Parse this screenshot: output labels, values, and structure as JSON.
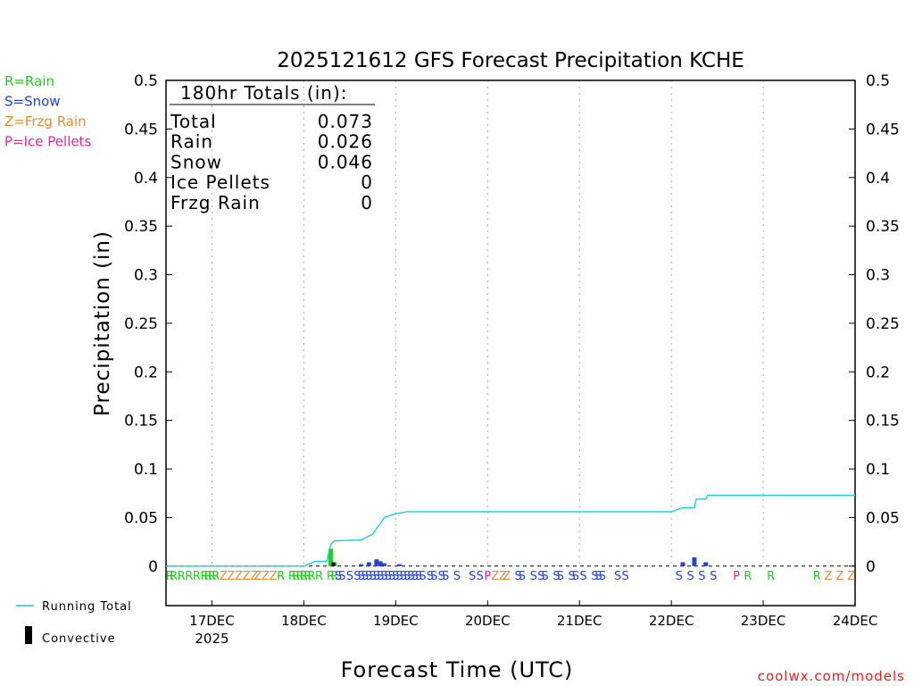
{
  "chart_data": {
    "type": "line",
    "title": "2025121612 GFS Forecast Precipitation KCHE",
    "xlabel": "Forecast Time (UTC)",
    "ylabel": "Precipitation (in)",
    "ylim": [
      0,
      0.5
    ],
    "xlim": [
      "2025-12-16T12:00",
      "2025-12-24T00:00"
    ],
    "y_ticks": [
      "0",
      "0.05",
      "0.1",
      "0.15",
      "0.2",
      "0.25",
      "0.3",
      "0.35",
      "0.4",
      "0.45",
      "0.5"
    ],
    "x_ticks": [
      {
        "label": "17DEC",
        "sublabel": "2025",
        "time": "2025-12-17T00:00"
      },
      {
        "label": "18DEC",
        "sublabel": "",
        "time": "2025-12-18T00:00"
      },
      {
        "label": "19DEC",
        "sublabel": "",
        "time": "2025-12-19T00:00"
      },
      {
        "label": "20DEC",
        "sublabel": "",
        "time": "2025-12-20T00:00"
      },
      {
        "label": "21DEC",
        "sublabel": "",
        "time": "2025-12-21T00:00"
      },
      {
        "label": "22DEC",
        "sublabel": "",
        "time": "2025-12-22T00:00"
      },
      {
        "label": "23DEC",
        "sublabel": "",
        "time": "2025-12-23T00:00"
      },
      {
        "label": "24DEC",
        "sublabel": "",
        "time": "2025-12-24T00:00"
      }
    ],
    "grid": true,
    "legend_placement": "bottom-left",
    "totals": {
      "header": "180hr Totals (in):",
      "rows": [
        {
          "label": "Total",
          "value": "0.073"
        },
        {
          "label": "Rain",
          "value": "0.026"
        },
        {
          "label": "Snow",
          "value": "0.046"
        },
        {
          "label": "Ice Pellets",
          "value": "0"
        },
        {
          "label": "Frzg Rain",
          "value": "0"
        }
      ]
    },
    "type_key": [
      {
        "text": "R=Rain",
        "color": "#22cc22"
      },
      {
        "text": "S=Snow",
        "color": "#2244dd"
      },
      {
        "text": "Z=Frzg Rain",
        "color": "#ee8833"
      },
      {
        "text": "P=Ice Pellets",
        "color": "#ee2299"
      }
    ],
    "series": [
      {
        "name": "Running Total",
        "color": "#22cccc",
        "points": [
          [
            "2025-12-16T12:00",
            0
          ],
          [
            "2025-12-18T00:00",
            0
          ],
          [
            "2025-12-18T03:00",
            0.005
          ],
          [
            "2025-12-18T06:00",
            0.005
          ],
          [
            "2025-12-18T07:00",
            0.022
          ],
          [
            "2025-12-18T08:00",
            0.026
          ],
          [
            "2025-12-18T15:00",
            0.027
          ],
          [
            "2025-12-18T18:00",
            0.033
          ],
          [
            "2025-12-18T20:00",
            0.044
          ],
          [
            "2025-12-18T21:00",
            0.05
          ],
          [
            "2025-12-19T00:00",
            0.054
          ],
          [
            "2025-12-19T03:00",
            0.056
          ],
          [
            "2025-12-22T00:00",
            0.056
          ],
          [
            "2025-12-22T03:00",
            0.06
          ],
          [
            "2025-12-22T06:00",
            0.06
          ],
          [
            "2025-12-22T06:30",
            0.069
          ],
          [
            "2025-12-22T09:00",
            0.069
          ],
          [
            "2025-12-22T09:30",
            0.073
          ],
          [
            "2025-12-24T00:00",
            0.073
          ]
        ]
      },
      {
        "name": "Convective",
        "color": "#000000",
        "bars": [
          [
            "2025-12-18T07:00",
            0.004
          ]
        ]
      }
    ],
    "precip_bars": [
      {
        "time": "2025-12-18T07:00",
        "value": 0.018,
        "type": "R"
      },
      {
        "time": "2025-12-18T08:00",
        "value": 0.004,
        "type": "R"
      },
      {
        "time": "2025-12-18T15:00",
        "value": 0.002,
        "type": "S"
      },
      {
        "time": "2025-12-18T17:00",
        "value": 0.004,
        "type": "S"
      },
      {
        "time": "2025-12-18T19:00",
        "value": 0.007,
        "type": "S"
      },
      {
        "time": "2025-12-18T20:00",
        "value": 0.005,
        "type": "S"
      },
      {
        "time": "2025-12-18T21:00",
        "value": 0.003,
        "type": "S"
      },
      {
        "time": "2025-12-19T01:00",
        "value": 0.002,
        "type": "S"
      },
      {
        "time": "2025-12-22T03:00",
        "value": 0.004,
        "type": "S"
      },
      {
        "time": "2025-12-22T06:00",
        "value": 0.009,
        "type": "S"
      },
      {
        "time": "2025-12-22T09:00",
        "value": 0.004,
        "type": "S"
      }
    ],
    "ptype_markers": [
      {
        "time": "2025-12-16T13:00",
        "type": "R"
      },
      {
        "time": "2025-12-16T14:00",
        "type": "R"
      },
      {
        "time": "2025-12-16T16:00",
        "type": "R"
      },
      {
        "time": "2025-12-16T18:00",
        "type": "R"
      },
      {
        "time": "2025-12-16T20:00",
        "type": "R"
      },
      {
        "time": "2025-12-16T22:00",
        "type": "R"
      },
      {
        "time": "2025-12-16T23:00",
        "type": "R"
      },
      {
        "time": "2025-12-17T00:00",
        "type": "R"
      },
      {
        "time": "2025-12-17T01:00",
        "type": "R"
      },
      {
        "time": "2025-12-17T03:00",
        "type": "Z"
      },
      {
        "time": "2025-12-17T05:00",
        "type": "Z"
      },
      {
        "time": "2025-12-17T07:00",
        "type": "Z"
      },
      {
        "time": "2025-12-17T09:00",
        "type": "Z"
      },
      {
        "time": "2025-12-17T11:00",
        "type": "Z"
      },
      {
        "time": "2025-12-17T12:00",
        "type": "Z"
      },
      {
        "time": "2025-12-17T14:00",
        "type": "Z"
      },
      {
        "time": "2025-12-17T16:00",
        "type": "Z"
      },
      {
        "time": "2025-12-17T18:00",
        "type": "R"
      },
      {
        "time": "2025-12-17T21:00",
        "type": "R"
      },
      {
        "time": "2025-12-17T22:00",
        "type": "R"
      },
      {
        "time": "2025-12-17T23:00",
        "type": "R"
      },
      {
        "time": "2025-12-18T00:00",
        "type": "R"
      },
      {
        "time": "2025-12-18T01:00",
        "type": "R"
      },
      {
        "time": "2025-12-18T02:00",
        "type": "R"
      },
      {
        "time": "2025-12-18T04:00",
        "type": "R"
      },
      {
        "time": "2025-12-18T07:00",
        "type": "R"
      },
      {
        "time": "2025-12-18T08:00",
        "type": "R"
      },
      {
        "time": "2025-12-18T09:00",
        "type": "S"
      },
      {
        "time": "2025-12-18T10:00",
        "type": "S"
      },
      {
        "time": "2025-12-18T12:00",
        "type": "S"
      },
      {
        "time": "2025-12-18T14:00",
        "type": "S"
      },
      {
        "time": "2025-12-18T15:00",
        "type": "S"
      },
      {
        "time": "2025-12-18T16:00",
        "type": "S"
      },
      {
        "time": "2025-12-18T17:00",
        "type": "S"
      },
      {
        "time": "2025-12-18T18:00",
        "type": "S"
      },
      {
        "time": "2025-12-18T19:00",
        "type": "S"
      },
      {
        "time": "2025-12-18T20:00",
        "type": "S"
      },
      {
        "time": "2025-12-18T21:00",
        "type": "S"
      },
      {
        "time": "2025-12-18T22:00",
        "type": "S"
      },
      {
        "time": "2025-12-18T23:00",
        "type": "S"
      },
      {
        "time": "2025-12-19T00:00",
        "type": "S"
      },
      {
        "time": "2025-12-19T01:00",
        "type": "S"
      },
      {
        "time": "2025-12-19T02:00",
        "type": "S"
      },
      {
        "time": "2025-12-19T03:00",
        "type": "S"
      },
      {
        "time": "2025-12-19T04:00",
        "type": "S"
      },
      {
        "time": "2025-12-19T05:00",
        "type": "S"
      },
      {
        "time": "2025-12-19T06:00",
        "type": "S"
      },
      {
        "time": "2025-12-19T07:00",
        "type": "S"
      },
      {
        "time": "2025-12-19T09:00",
        "type": "S"
      },
      {
        "time": "2025-12-19T10:00",
        "type": "S"
      },
      {
        "time": "2025-12-19T12:00",
        "type": "S"
      },
      {
        "time": "2025-12-19T13:00",
        "type": "S"
      },
      {
        "time": "2025-12-19T16:00",
        "type": "S"
      },
      {
        "time": "2025-12-19T20:00",
        "type": "S"
      },
      {
        "time": "2025-12-19T22:00",
        "type": "S"
      },
      {
        "time": "2025-12-20T00:00",
        "type": "P"
      },
      {
        "time": "2025-12-20T02:00",
        "type": "Z"
      },
      {
        "time": "2025-12-20T04:00",
        "type": "Z"
      },
      {
        "time": "2025-12-20T05:00",
        "type": "Z"
      },
      {
        "time": "2025-12-20T08:00",
        "type": "S"
      },
      {
        "time": "2025-12-20T09:00",
        "type": "S"
      },
      {
        "time": "2025-12-20T12:00",
        "type": "S"
      },
      {
        "time": "2025-12-20T14:00",
        "type": "S"
      },
      {
        "time": "2025-12-20T15:00",
        "type": "S"
      },
      {
        "time": "2025-12-20T18:00",
        "type": "S"
      },
      {
        "time": "2025-12-20T19:00",
        "type": "S"
      },
      {
        "time": "2025-12-20T22:00",
        "type": "S"
      },
      {
        "time": "2025-12-20T23:00",
        "type": "S"
      },
      {
        "time": "2025-12-21T01:00",
        "type": "S"
      },
      {
        "time": "2025-12-21T04:00",
        "type": "S"
      },
      {
        "time": "2025-12-21T05:00",
        "type": "S"
      },
      {
        "time": "2025-12-21T06:00",
        "type": "S"
      },
      {
        "time": "2025-12-21T10:00",
        "type": "S"
      },
      {
        "time": "2025-12-21T12:00",
        "type": "S"
      },
      {
        "time": "2025-12-22T02:00",
        "type": "S"
      },
      {
        "time": "2025-12-22T05:00",
        "type": "S"
      },
      {
        "time": "2025-12-22T08:00",
        "type": "S"
      },
      {
        "time": "2025-12-22T11:00",
        "type": "S"
      },
      {
        "time": "2025-12-22T17:00",
        "type": "P"
      },
      {
        "time": "2025-12-22T20:00",
        "type": "R"
      },
      {
        "time": "2025-12-23T02:00",
        "type": "R"
      },
      {
        "time": "2025-12-23T14:00",
        "type": "R"
      },
      {
        "time": "2025-12-23T17:00",
        "type": "Z"
      },
      {
        "time": "2025-12-23T20:00",
        "type": "Z"
      },
      {
        "time": "2025-12-23T23:00",
        "type": "Z"
      }
    ],
    "type_colors": {
      "R": "#22cc22",
      "S": "#2244dd",
      "Z": "#ee8833",
      "P": "#ee2299"
    },
    "bottom_legend": [
      {
        "label": "Running Total",
        "kind": "line",
        "color": "#22cccc"
      },
      {
        "label": "Convective",
        "kind": "bar",
        "color": "#000000"
      }
    ],
    "credit": "coolwx.com/models",
    "credit_color": "#dd2222"
  }
}
